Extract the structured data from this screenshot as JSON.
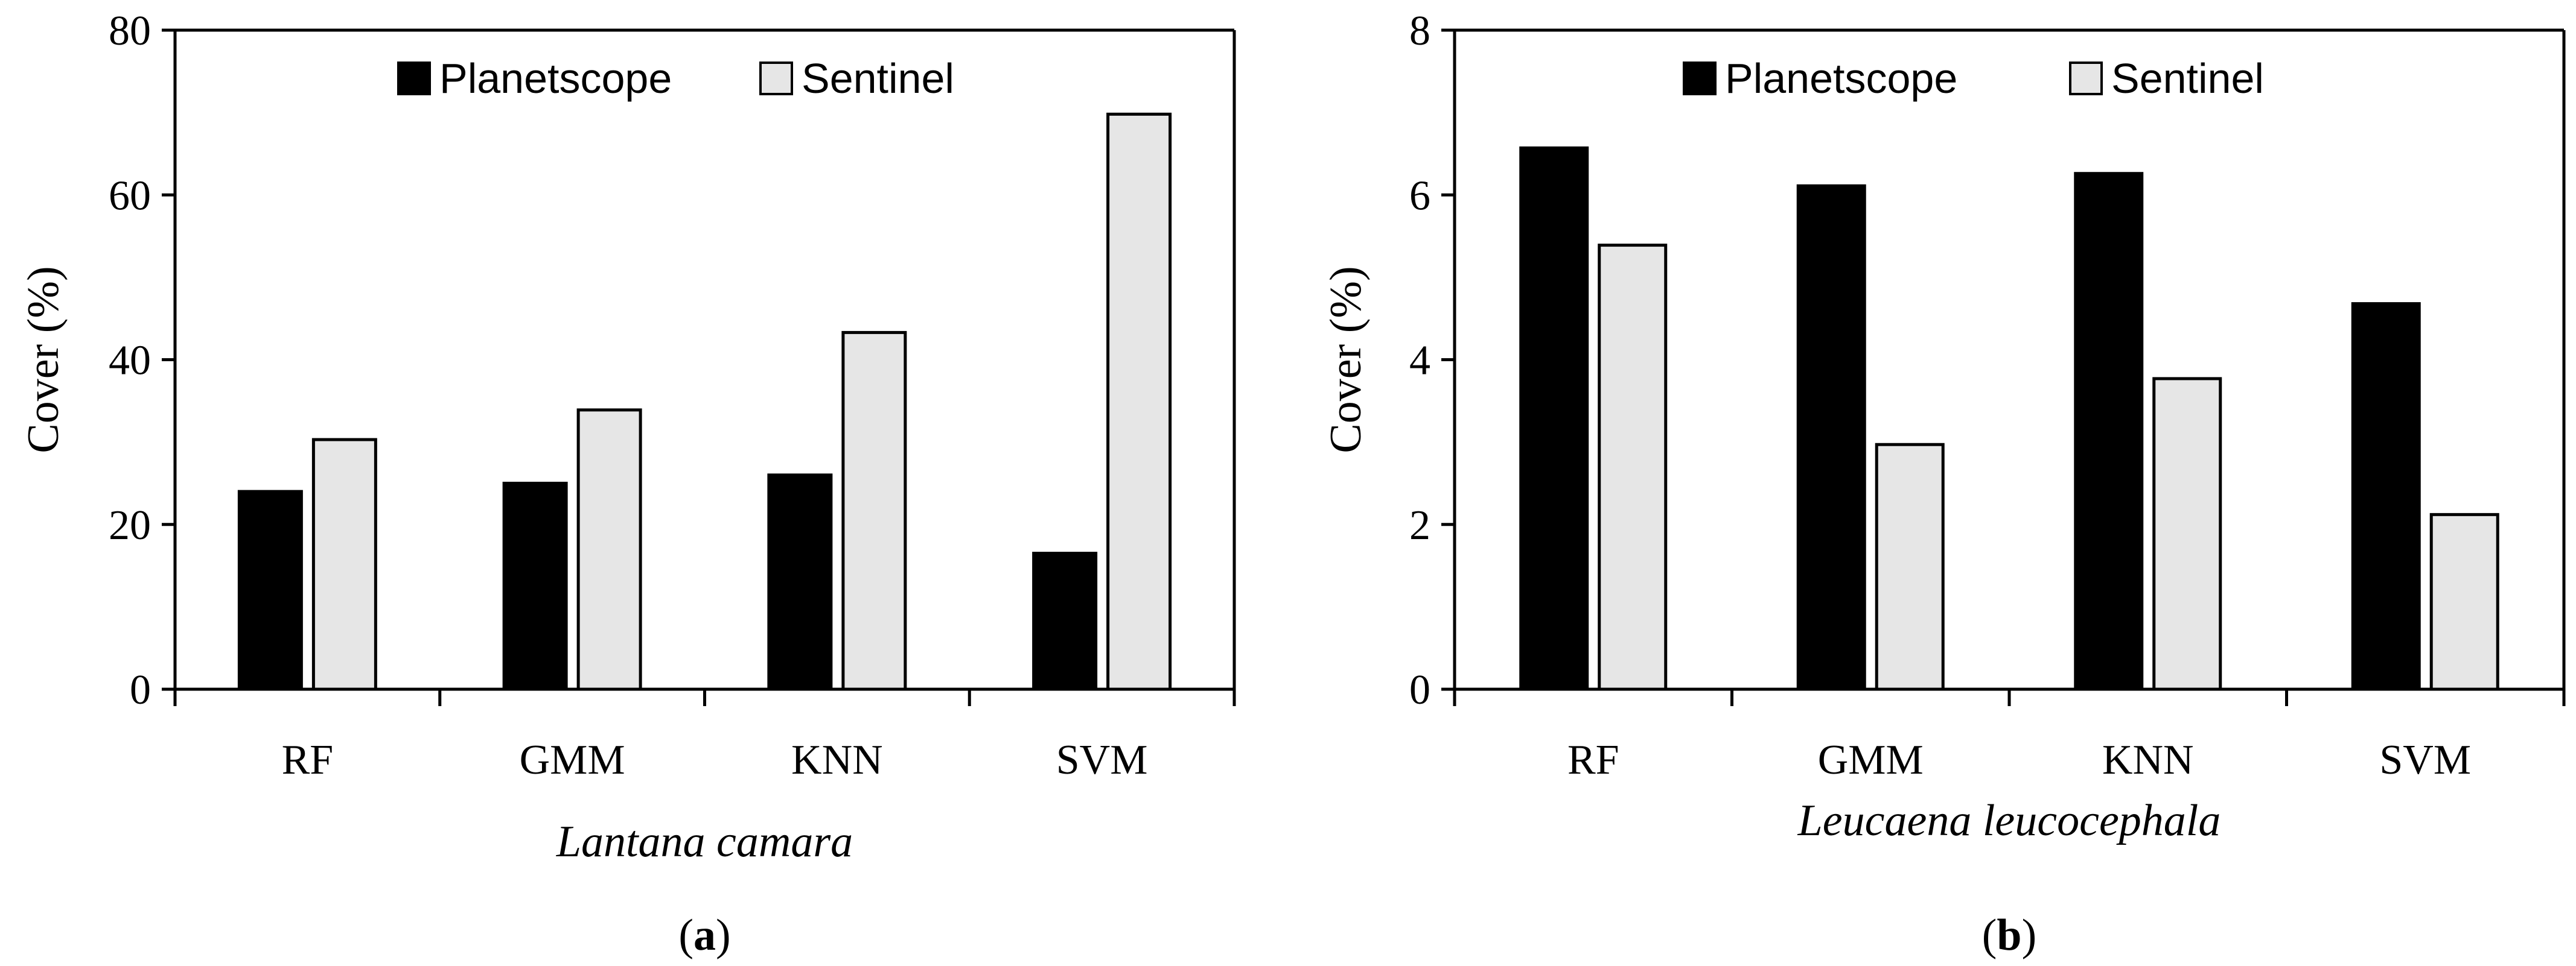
{
  "chart_data": [
    {
      "type": "bar",
      "panel": "a",
      "categories": [
        "RF",
        "GMM",
        "KNN",
        "SVM"
      ],
      "series": [
        {
          "name": "Planetscope",
          "color": "#000000",
          "values": [
            24,
            25,
            26,
            16.5
          ]
        },
        {
          "name": "Sentinel",
          "color": "#e6e6e6",
          "values": [
            30.3,
            33.9,
            43.3,
            69.8
          ]
        }
      ],
      "ylim": [
        0,
        80
      ],
      "yticks": [
        0,
        20,
        40,
        60,
        80
      ],
      "ylabel": "Cover (%)",
      "xlabel": "Lantana camara",
      "legend": "top",
      "caption_prefix": "(",
      "caption_letter": "a",
      "caption_suffix": ")"
    },
    {
      "type": "bar",
      "panel": "b",
      "categories": [
        "RF",
        "GMM",
        "KNN",
        "SVM"
      ],
      "series": [
        {
          "name": "Planetscope",
          "color": "#000000",
          "values": [
            6.57,
            6.11,
            6.26,
            4.68
          ]
        },
        {
          "name": "Sentinel",
          "color": "#e6e6e6",
          "values": [
            5.39,
            2.97,
            3.77,
            2.12
          ]
        }
      ],
      "ylim": [
        0,
        8
      ],
      "yticks": [
        0,
        2,
        4,
        6,
        8
      ],
      "ylabel": "Cover (%)",
      "xlabel": "Leucaena leucocephala",
      "legend": "top",
      "caption_prefix": "(",
      "caption_letter": "b",
      "caption_suffix": ")"
    }
  ]
}
